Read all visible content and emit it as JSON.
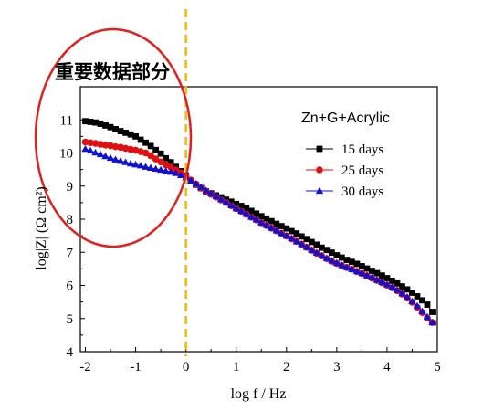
{
  "annotation": {
    "title": "重要数据部分",
    "ellipse_color": "#e02020",
    "marker_line_color": "#f5b800",
    "marker_line_x": 0
  },
  "chart_data": {
    "type": "scatter",
    "subtitle": "Zn+G+Acrylic",
    "xlabel": "log f / Hz",
    "ylabel": "log|Z| (Ω cm²)",
    "xlim": [
      -2.1,
      5.0
    ],
    "ylim": [
      4,
      12
    ],
    "xticks": [
      -2,
      -1,
      0,
      1,
      2,
      3,
      4,
      5
    ],
    "yticks": [
      4,
      5,
      6,
      7,
      8,
      9,
      10,
      11
    ],
    "grid": false,
    "legend_position": "top-right",
    "series": [
      {
        "name": "15 days",
        "color": "#000000",
        "marker": "square",
        "x": [
          -2.0,
          -1.9,
          -1.8,
          -1.7,
          -1.6,
          -1.5,
          -1.4,
          -1.3,
          -1.2,
          -1.1,
          -1.0,
          -0.9,
          -0.8,
          -0.7,
          -0.6,
          -0.5,
          -0.4,
          -0.3,
          -0.2,
          -0.1,
          0.0,
          0.1,
          0.2,
          0.3,
          0.4,
          0.5,
          0.6,
          0.7,
          0.8,
          0.9,
          1.0,
          1.1,
          1.2,
          1.3,
          1.4,
          1.5,
          1.6,
          1.7,
          1.8,
          1.9,
          2.0,
          2.1,
          2.2,
          2.3,
          2.4,
          2.5,
          2.6,
          2.7,
          2.8,
          2.9,
          3.0,
          3.1,
          3.2,
          3.3,
          3.4,
          3.5,
          3.6,
          3.7,
          3.8,
          3.9,
          4.0,
          4.1,
          4.2,
          4.3,
          4.4,
          4.5,
          4.6,
          4.7,
          4.8,
          4.9
        ],
        "y": [
          10.96,
          10.94,
          10.92,
          10.88,
          10.83,
          10.78,
          10.72,
          10.66,
          10.61,
          10.56,
          10.5,
          10.4,
          10.31,
          10.21,
          10.09,
          9.98,
          9.84,
          9.72,
          9.58,
          9.45,
          9.32,
          9.16,
          9.04,
          8.94,
          8.84,
          8.78,
          8.72,
          8.66,
          8.59,
          8.53,
          8.46,
          8.4,
          8.33,
          8.25,
          8.17,
          8.09,
          8.02,
          7.94,
          7.86,
          7.79,
          7.72,
          7.64,
          7.57,
          7.48,
          7.4,
          7.31,
          7.23,
          7.14,
          7.07,
          6.99,
          6.91,
          6.84,
          6.77,
          6.71,
          6.65,
          6.58,
          6.51,
          6.44,
          6.37,
          6.3,
          6.22,
          6.14,
          6.06,
          5.97,
          5.88,
          5.78,
          5.67,
          5.55,
          5.42,
          5.2
        ]
      },
      {
        "name": "25 days",
        "color": "#e01010",
        "marker": "circle",
        "x": [
          -2.0,
          -1.9,
          -1.8,
          -1.7,
          -1.6,
          -1.5,
          -1.4,
          -1.3,
          -1.2,
          -1.1,
          -1.0,
          -0.9,
          -0.8,
          -0.7,
          -0.6,
          -0.5,
          -0.4,
          -0.3,
          -0.2,
          -0.1,
          0.0,
          0.1,
          0.2,
          0.3,
          0.4,
          0.5,
          0.6,
          0.7,
          0.8,
          0.9,
          1.0,
          1.1,
          1.2,
          1.3,
          1.4,
          1.5,
          1.6,
          1.7,
          1.8,
          1.9,
          2.0,
          2.1,
          2.2,
          2.3,
          2.4,
          2.5,
          2.6,
          2.7,
          2.8,
          2.9,
          3.0,
          3.1,
          3.2,
          3.3,
          3.4,
          3.5,
          3.6,
          3.7,
          3.8,
          3.9,
          4.0,
          4.1,
          4.2,
          4.3,
          4.4,
          4.5,
          4.6,
          4.7,
          4.8,
          4.9
        ],
        "y": [
          10.33,
          10.31,
          10.29,
          10.26,
          10.24,
          10.22,
          10.19,
          10.17,
          10.14,
          10.11,
          10.08,
          10.04,
          10.0,
          9.92,
          9.82,
          9.73,
          9.64,
          9.57,
          9.49,
          9.4,
          9.3,
          9.18,
          9.06,
          8.94,
          8.84,
          8.75,
          8.67,
          8.58,
          8.5,
          8.41,
          8.32,
          8.24,
          8.15,
          8.06,
          7.98,
          7.89,
          7.81,
          7.73,
          7.65,
          7.57,
          7.49,
          7.41,
          7.33,
          7.24,
          7.15,
          7.06,
          6.97,
          6.89,
          6.81,
          6.73,
          6.66,
          6.6,
          6.54,
          6.49,
          6.42,
          6.36,
          6.29,
          6.22,
          6.15,
          6.08,
          6.01,
          5.93,
          5.84,
          5.74,
          5.62,
          5.49,
          5.34,
          5.18,
          5.02,
          4.88
        ]
      },
      {
        "name": "30 days",
        "color": "#1010d0",
        "marker": "triangle",
        "x": [
          -2.0,
          -1.9,
          -1.8,
          -1.7,
          -1.6,
          -1.5,
          -1.4,
          -1.3,
          -1.2,
          -1.1,
          -1.0,
          -0.9,
          -0.8,
          -0.7,
          -0.6,
          -0.5,
          -0.4,
          -0.3,
          -0.2,
          -0.1,
          0.0,
          0.1,
          0.2,
          0.3,
          0.4,
          0.5,
          0.6,
          0.7,
          0.8,
          0.9,
          1.0,
          1.1,
          1.2,
          1.3,
          1.4,
          1.5,
          1.6,
          1.7,
          1.8,
          1.9,
          2.0,
          2.1,
          2.2,
          2.3,
          2.4,
          2.5,
          2.6,
          2.7,
          2.8,
          2.9,
          3.0,
          3.1,
          3.2,
          3.3,
          3.4,
          3.5,
          3.6,
          3.7,
          3.8,
          3.9,
          4.0,
          4.1,
          4.2,
          4.3,
          4.4,
          4.5,
          4.6,
          4.7,
          4.8,
          4.9
        ],
        "y": [
          10.12,
          10.07,
          10.01,
          9.96,
          9.9,
          9.85,
          9.8,
          9.76,
          9.72,
          9.68,
          9.65,
          9.62,
          9.58,
          9.55,
          9.52,
          9.49,
          9.46,
          9.43,
          9.39,
          9.33,
          9.26,
          9.17,
          9.07,
          8.97,
          8.87,
          8.78,
          8.69,
          8.6,
          8.51,
          8.42,
          8.33,
          8.25,
          8.16,
          8.07,
          7.99,
          7.9,
          7.82,
          7.74,
          7.66,
          7.58,
          7.5,
          7.42,
          7.33,
          7.25,
          7.16,
          7.07,
          6.99,
          6.9,
          6.82,
          6.75,
          6.68,
          6.61,
          6.55,
          6.49,
          6.43,
          6.37,
          6.3,
          6.24,
          6.17,
          6.1,
          6.03,
          5.95,
          5.86,
          5.76,
          5.65,
          5.52,
          5.38,
          5.22,
          5.05,
          4.88
        ]
      }
    ]
  }
}
